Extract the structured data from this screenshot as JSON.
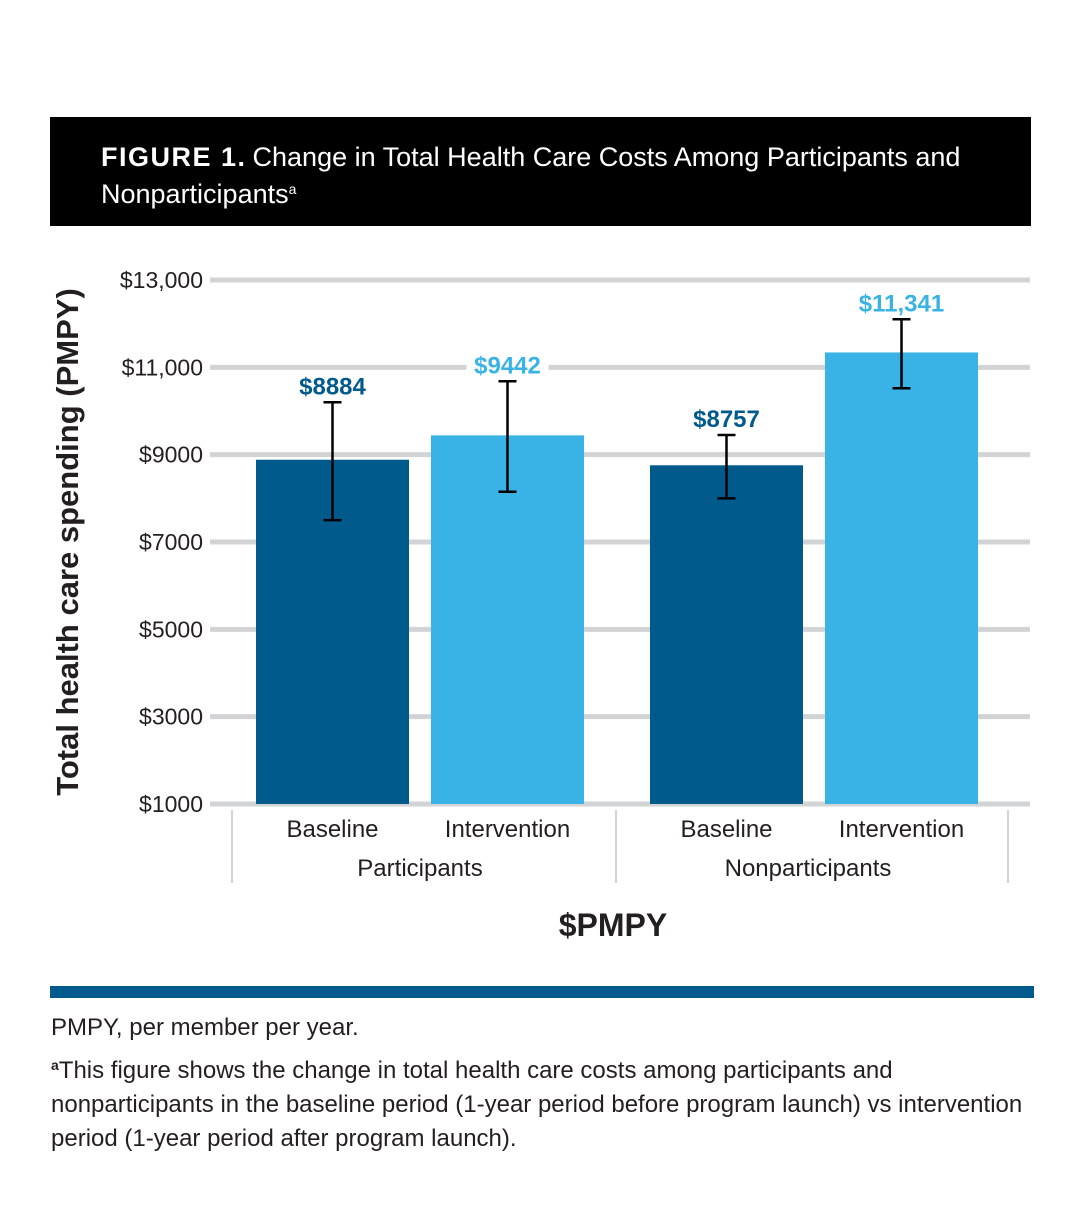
{
  "figure": {
    "label": "FIGURE 1.",
    "title": "Change in Total Health Care Costs Among Participants and Nonparticipants",
    "title_sup": "a"
  },
  "chart_data": {
    "type": "bar",
    "title": "Change in Total Health Care Costs Among Participants and Nonparticipants",
    "ylabel": "Total health care spending (PMPY)",
    "xlabel": "$PMPY",
    "ylim": [
      1000,
      13000
    ],
    "yticks": [
      1000,
      3000,
      5000,
      7000,
      9000,
      11000,
      13000
    ],
    "ytick_labels": [
      "$1000",
      "$3000",
      "$5000",
      "$7000",
      "$9000",
      "$11,000",
      "$13,000"
    ],
    "grid": true,
    "groups": [
      {
        "name": "Participants",
        "bars": [
          {
            "category": "Baseline",
            "value": 8884,
            "label": "$8884",
            "err_low": 7500,
            "err_high": 10200,
            "color": "#005b8c"
          },
          {
            "category": "Intervention",
            "value": 9442,
            "label": "$9442",
            "err_low": 8150,
            "err_high": 10680,
            "color": "#39b2e5"
          }
        ]
      },
      {
        "name": "Nonparticipants",
        "bars": [
          {
            "category": "Baseline",
            "value": 8757,
            "label": "$8757",
            "err_low": 8000,
            "err_high": 9450,
            "color": "#005b8c"
          },
          {
            "category": "Intervention",
            "value": 11341,
            "label": "$11,341",
            "err_low": 10520,
            "err_high": 12100,
            "color": "#39b2e5"
          }
        ]
      }
    ]
  },
  "colors": {
    "baseline": "#005b8c",
    "intervention": "#39b2e5",
    "grid": "#d1d3d4",
    "rule": "#005b8c"
  },
  "footnotes": {
    "abbrev": "PMPY, per member per year.",
    "note_marker": "a",
    "note": "This figure shows the change in total health care costs among participants and nonparticipants in the baseline period (1-year period before program launch) vs intervention period (1-year period after program launch)."
  }
}
